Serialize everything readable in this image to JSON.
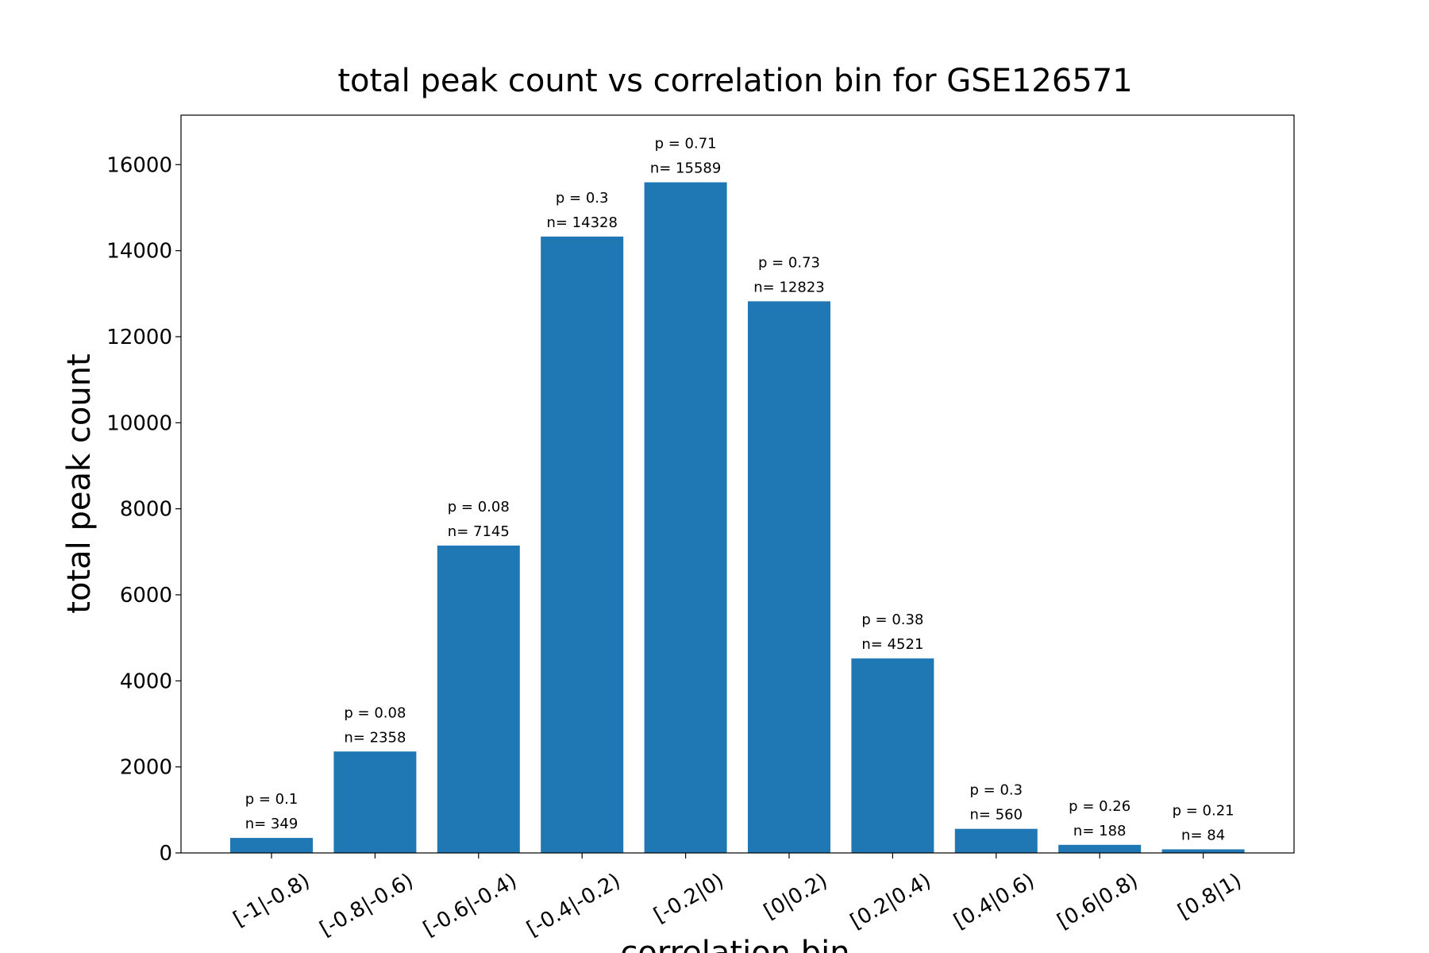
{
  "chart_data": {
    "type": "bar",
    "title": "total peak count vs correlation bin for GSE126571",
    "xlabel": "correlation bin",
    "ylabel": "total peak count",
    "categories": [
      "[-1|-0.8)",
      "[-0.8|-0.6)",
      "[-0.6|-0.4)",
      "[-0.4|-0.2)",
      "[-0.2|0)",
      "[0|0.2)",
      "[0.2|0.4)",
      "[0.4|0.6)",
      "[0.6|0.8)",
      "[0.8|1)"
    ],
    "values": [
      349,
      2358,
      7145,
      14328,
      15589,
      12823,
      4521,
      560,
      188,
      84
    ],
    "p_labels": [
      "p = 0.1",
      "p = 0.08",
      "p = 0.08",
      "p = 0.3",
      "p = 0.71",
      "p = 0.73",
      "p = 0.38",
      "p = 0.3",
      "p = 0.26",
      "p = 0.21"
    ],
    "n_labels": [
      "n= 349",
      "n= 2358",
      "n= 7145",
      "n= 14328",
      "n= 15589",
      "n= 12823",
      "n= 4521",
      "n= 560",
      "n= 188",
      "n= 84"
    ],
    "yticks": [
      0,
      2000,
      4000,
      6000,
      8000,
      10000,
      12000,
      14000,
      16000
    ],
    "ylim": [
      0,
      17150
    ],
    "grid": false,
    "legend": false,
    "bar_color": "#1f77b4"
  }
}
